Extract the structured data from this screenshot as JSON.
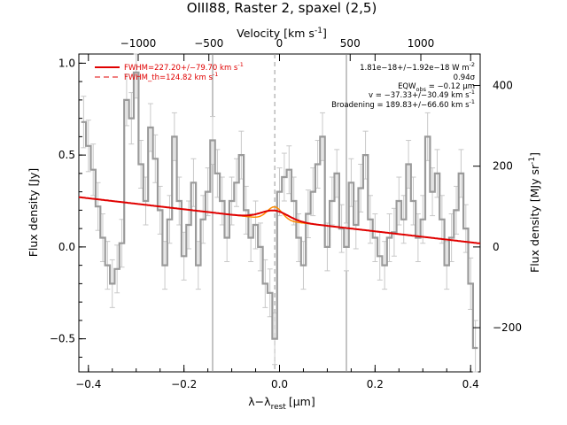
{
  "title": "OIII88, Raster 2, spaxel (2,5)",
  "chart_data": {
    "type": "line",
    "title": "OIII88, Raster 2, spaxel (2,5)",
    "xlabel": "λ−λ_rest [μm]",
    "xlabel_main": "λ−λ",
    "xlabel_sub": "rest",
    "xlabel_unit": "[μm]",
    "ylabel": "Flux density [Jy]",
    "top_xlabel": "Velocity [km s⁻¹]",
    "top_xlabel_main": "Velocity [km s",
    "top_xlabel_sup": "-1",
    "top_xlabel_close": "]",
    "right_ylabel": "Flux density [MJy sr⁻¹]",
    "right_ylabel_main": "Flux density [MJy sr",
    "right_ylabel_sup": "-1",
    "right_ylabel_close": "]",
    "xlim": [
      -0.42,
      0.42
    ],
    "ylim": [
      -0.68,
      1.05
    ],
    "x_ticks": [
      -0.4,
      -0.2,
      0.0,
      0.2,
      0.4
    ],
    "x_tick_labels": [
      "−0.4",
      "−0.2",
      "0.0",
      "0.2",
      "0.4"
    ],
    "y_ticks": [
      -0.5,
      0.0,
      0.5,
      1.0
    ],
    "y_tick_labels": [
      "−0.5",
      "0.0",
      "0.5",
      "1.0"
    ],
    "top_ticks": [
      -1000,
      -500,
      0,
      500,
      1000
    ],
    "top_tick_labels": [
      "−1000",
      "−500",
      "0",
      "500",
      "1000"
    ],
    "top_ticks_wavelength": [
      -0.2958,
      -0.1479,
      0.0,
      0.1479,
      0.2958
    ],
    "right_ticks": [
      -200,
      0,
      200,
      400
    ],
    "right_tick_labels": [
      "−200",
      "0",
      "200",
      "400"
    ],
    "right_ticks_jy": [
      -0.4395,
      0.0,
      0.4395,
      0.879
    ],
    "vertical_lines": [
      -0.14,
      0.14
    ],
    "dashed_center": -0.01,
    "spectrum": {
      "name": "Spectrum",
      "color": "#9a9a9a",
      "x": [
        -0.41,
        -0.4,
        -0.39,
        -0.38,
        -0.37,
        -0.36,
        -0.35,
        -0.34,
        -0.33,
        -0.32,
        -0.31,
        -0.3,
        -0.29,
        -0.28,
        -0.27,
        -0.26,
        -0.25,
        -0.24,
        -0.23,
        -0.22,
        -0.21,
        -0.2,
        -0.19,
        -0.18,
        -0.17,
        -0.16,
        -0.15,
        -0.14,
        -0.13,
        -0.12,
        -0.11,
        -0.1,
        -0.09,
        -0.08,
        -0.07,
        -0.06,
        -0.05,
        -0.04,
        -0.03,
        -0.02,
        -0.01,
        0.0,
        0.01,
        0.02,
        0.03,
        0.04,
        0.05,
        0.06,
        0.07,
        0.08,
        0.09,
        0.1,
        0.11,
        0.12,
        0.13,
        0.14,
        0.15,
        0.16,
        0.17,
        0.18,
        0.19,
        0.2,
        0.21,
        0.22,
        0.23,
        0.24,
        0.25,
        0.26,
        0.27,
        0.28,
        0.29,
        0.3,
        0.31,
        0.32,
        0.33,
        0.34,
        0.35,
        0.36,
        0.37,
        0.38,
        0.39,
        0.4,
        0.41
      ],
      "y": [
        0.68,
        0.55,
        0.42,
        0.22,
        0.05,
        -0.1,
        -0.2,
        -0.12,
        0.02,
        0.8,
        0.7,
        0.95,
        0.45,
        0.25,
        0.65,
        0.48,
        0.2,
        -0.1,
        0.15,
        0.6,
        0.25,
        -0.05,
        0.12,
        0.35,
        -0.1,
        0.15,
        0.3,
        0.58,
        0.4,
        0.25,
        0.05,
        0.25,
        0.35,
        0.5,
        0.2,
        0.05,
        0.12,
        0.0,
        -0.2,
        -0.25,
        -0.5,
        0.3,
        0.38,
        0.42,
        0.25,
        0.05,
        -0.1,
        0.18,
        0.3,
        0.45,
        0.6,
        0.0,
        0.25,
        0.4,
        0.1,
        0.0,
        0.35,
        0.12,
        0.32,
        0.5,
        0.15,
        0.05,
        -0.05,
        -0.1,
        0.05,
        0.08,
        0.25,
        0.15,
        0.45,
        0.25,
        0.05,
        0.15,
        0.6,
        0.3,
        0.4,
        0.15,
        -0.1,
        0.05,
        0.2,
        0.4,
        0.1,
        -0.2,
        -0.55
      ],
      "yerr": [
        0.14,
        0.14,
        0.14,
        0.13,
        0.13,
        0.13,
        0.13,
        0.13,
        0.13,
        0.14,
        0.14,
        0.14,
        0.13,
        0.13,
        0.13,
        0.13,
        0.13,
        0.13,
        0.13,
        0.13,
        0.13,
        0.13,
        0.13,
        0.13,
        0.13,
        0.13,
        0.13,
        0.13,
        0.13,
        0.13,
        0.13,
        0.13,
        0.13,
        0.13,
        0.13,
        0.13,
        0.13,
        0.13,
        0.13,
        0.13,
        0.14,
        0.13,
        0.13,
        0.13,
        0.13,
        0.13,
        0.13,
        0.13,
        0.13,
        0.13,
        0.13,
        0.13,
        0.13,
        0.13,
        0.13,
        0.13,
        0.13,
        0.13,
        0.13,
        0.13,
        0.13,
        0.13,
        0.13,
        0.13,
        0.13,
        0.13,
        0.13,
        0.13,
        0.13,
        0.13,
        0.13,
        0.13,
        0.13,
        0.13,
        0.13,
        0.13,
        0.13,
        0.13,
        0.13,
        0.13,
        0.13,
        0.14,
        0.15
      ]
    },
    "fit": {
      "name": "FWHM=227.20+/-79.70 km s⁻¹",
      "color": "#e00000",
      "continuum_intercept": 0.145,
      "continuum_slope": -0.3,
      "gaussian_amplitude": 0.05,
      "gaussian_center": -0.01,
      "gaussian_sigma": 0.028
    },
    "fit_th": {
      "name": "FWHM_th=124.82 km s⁻¹",
      "color": "#e00000",
      "gaussian_amplitude": 0.07,
      "gaussian_center": -0.01,
      "gaussian_sigma": 0.0155
    },
    "legend": [
      {
        "label": "FWHM=227.20+/−79.70 km s",
        "sup": "-1",
        "style": "solid",
        "color": "#e00000"
      },
      {
        "label": "FWHM_th=124.82 km s",
        "sup": "-1",
        "style": "dashed",
        "color": "#e00000"
      }
    ],
    "legend_position": "top-left",
    "annotations": [
      {
        "main": "1.81e−18+/−1.92e−18 W m",
        "sup": "-2"
      },
      {
        "main": "0.94σ",
        "sup": ""
      },
      {
        "main": "EQW",
        "sub": "obs",
        "rest": " = −0.12 μm",
        "sup": ""
      },
      {
        "main": "v = −37.33+/−30.49 km s",
        "sup": "-1"
      },
      {
        "main": "Broadening = 189.83+/−66.60 km s",
        "sup": "-1"
      }
    ],
    "annotation_position": "top-right"
  }
}
